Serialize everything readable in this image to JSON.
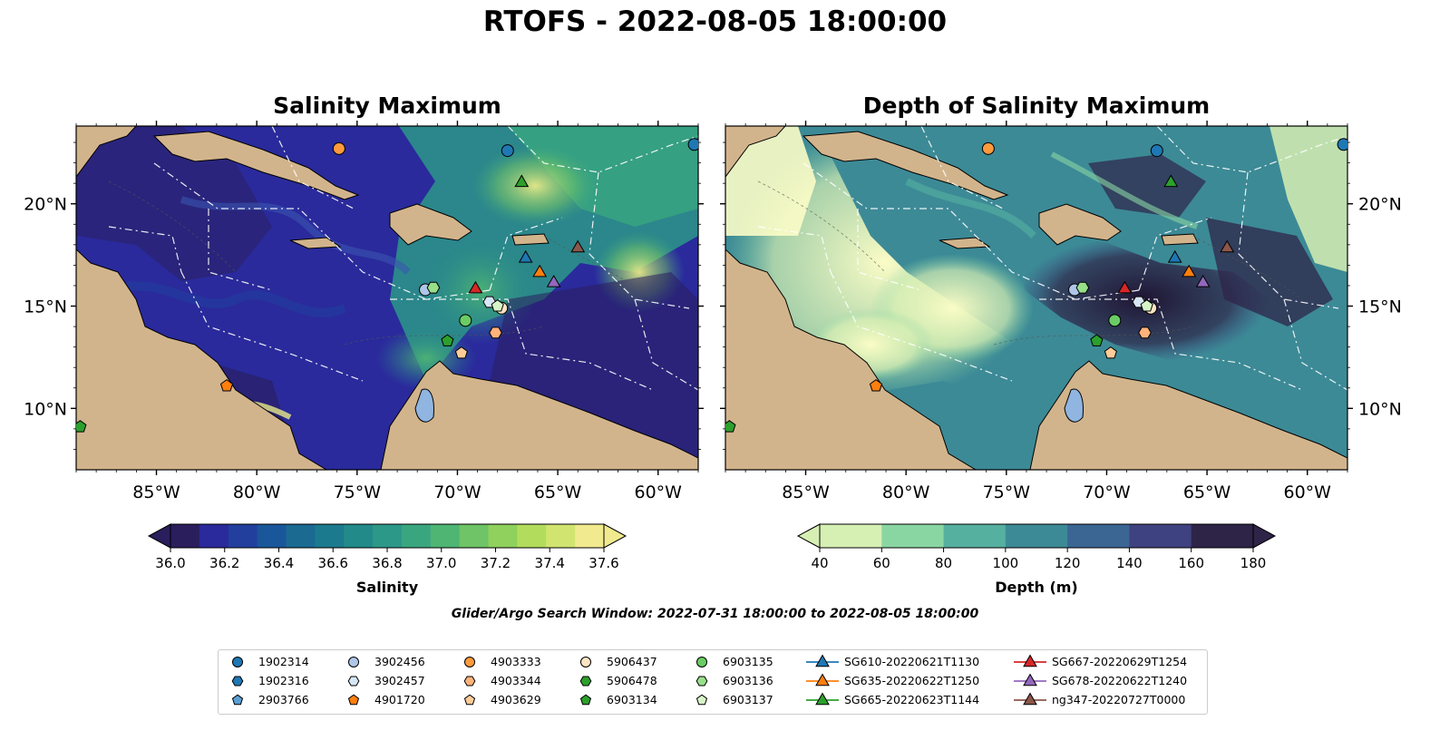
{
  "figure": {
    "title": "RTOFS - 2022-08-05 18:00:00",
    "search_window": "Glider/Argo Search Window: 2022-07-31 18:00:00 to 2022-08-05 18:00:00"
  },
  "chart_data": [
    {
      "type": "heatmap",
      "title": "Salinity Maximum",
      "x_ticks": [
        "85°W",
        "80°W",
        "75°W",
        "70°W",
        "65°W",
        "60°W"
      ],
      "x_tick_values": [
        -85,
        -80,
        -75,
        -70,
        -65,
        -60
      ],
      "y_ticks": [
        "20°N",
        "15°N",
        "10°N"
      ],
      "y_tick_values": [
        20,
        15,
        10
      ],
      "xlim": [
        -89,
        -58
      ],
      "ylim": [
        7,
        23.8
      ],
      "colorbar": {
        "label": "Salinity",
        "ticks": [
          "36.0",
          "36.2",
          "36.4",
          "36.6",
          "36.8",
          "37.0",
          "37.2",
          "37.4",
          "37.6"
        ],
        "range": [
          36.0,
          37.6
        ],
        "extend": "both",
        "colors": [
          "#2a1e5c",
          "#2a2a9c",
          "#223f9e",
          "#1a579a",
          "#1a6a92",
          "#1c7a8e",
          "#238a8a",
          "#2c9888",
          "#3aa680",
          "#4fb573",
          "#6ec466",
          "#8fd15c",
          "#b2dd5c",
          "#d2e470",
          "#f1ea8e"
        ]
      }
    },
    {
      "type": "heatmap",
      "title": "Depth of Salinity Maximum",
      "x_ticks": [
        "85°W",
        "80°W",
        "75°W",
        "70°W",
        "65°W",
        "60°W"
      ],
      "x_tick_values": [
        -85,
        -80,
        -75,
        -70,
        -65,
        -60
      ],
      "y_ticks": [
        "20°N",
        "15°N",
        "10°N"
      ],
      "y_tick_values": [
        20,
        15,
        10
      ],
      "xlim": [
        -89,
        -58
      ],
      "ylim": [
        7,
        23.8
      ],
      "colorbar": {
        "label": "Depth (m)",
        "ticks": [
          "40",
          "60",
          "80",
          "100",
          "120",
          "140",
          "160",
          "180"
        ],
        "range": [
          40,
          180
        ],
        "extend": "both",
        "colors": [
          "#d6efb3",
          "#8ad6a3",
          "#55b0a0",
          "#3c8a96",
          "#3b6693",
          "#3f4280",
          "#2e2448"
        ]
      }
    }
  ],
  "legend": {
    "items": [
      {
        "label": "1902314",
        "shape": "circle",
        "color": "#1f77b4"
      },
      {
        "label": "1902316",
        "shape": "hexagon",
        "color": "#1f77b4"
      },
      {
        "label": "2903766",
        "shape": "pentagon",
        "color": "#5a9fd4"
      },
      {
        "label": "3902456",
        "shape": "circle",
        "color": "#aec7e8"
      },
      {
        "label": "3902457",
        "shape": "hexagon",
        "color": "#d6e6f5"
      },
      {
        "label": "4901720",
        "shape": "pentagon",
        "color": "#ff7f0e"
      },
      {
        "label": "4903333",
        "shape": "circle",
        "color": "#ff9a3c"
      },
      {
        "label": "4903344",
        "shape": "hexagon",
        "color": "#ffb27a"
      },
      {
        "label": "4903629",
        "shape": "pentagon",
        "color": "#ffcc99"
      },
      {
        "label": "5906437",
        "shape": "circle",
        "color": "#ffe4c4"
      },
      {
        "label": "5906478",
        "shape": "hexagon",
        "color": "#2ca02c"
      },
      {
        "label": "6903134",
        "shape": "pentagon",
        "color": "#2ca02c"
      },
      {
        "label": "6903135",
        "shape": "circle",
        "color": "#6acc64"
      },
      {
        "label": "6903136",
        "shape": "hexagon",
        "color": "#98df8a"
      },
      {
        "label": "6903137",
        "shape": "pentagon",
        "color": "#d8f5c8"
      },
      {
        "label": "SG610-20220621T1130",
        "shape": "triangle",
        "color": "#1f77b4"
      },
      {
        "label": "SG635-20220622T1250",
        "shape": "triangle",
        "color": "#ff7f0e"
      },
      {
        "label": "SG665-20220623T1144",
        "shape": "triangle",
        "color": "#2ca02c"
      },
      {
        "label": "SG667-20220629T1254",
        "shape": "triangle",
        "color": "#d62728"
      },
      {
        "label": "SG678-20220622T1240",
        "shape": "triangle",
        "color": "#9467bd"
      },
      {
        "label": "ng347-20220727T0000",
        "shape": "triangle",
        "color": "#8c564b"
      }
    ]
  },
  "markers": [
    {
      "name": "4903333",
      "lon": -75.9,
      "lat": 22.7
    },
    {
      "name": "1902314",
      "lon": -67.5,
      "lat": 22.6
    },
    {
      "name": "1902314",
      "lon": -58.2,
      "lat": 22.9
    },
    {
      "name": "SG665-20220623T1144",
      "lon": -66.8,
      "lat": 21.1
    },
    {
      "name": "ng347-20220727T0000",
      "lon": -64.0,
      "lat": 17.9
    },
    {
      "name": "SG610-20220621T1130",
      "lon": -66.6,
      "lat": 17.4
    },
    {
      "name": "SG635-20220622T1250",
      "lon": -65.9,
      "lat": 16.7
    },
    {
      "name": "SG678-20220622T1240",
      "lon": -65.2,
      "lat": 16.2
    },
    {
      "name": "SG667-20220629T1254",
      "lon": -69.1,
      "lat": 15.9
    },
    {
      "name": "3902456",
      "lon": -71.6,
      "lat": 15.8
    },
    {
      "name": "6903136",
      "lon": -71.2,
      "lat": 15.9
    },
    {
      "name": "3902457",
      "lon": -68.4,
      "lat": 15.2
    },
    {
      "name": "5906437",
      "lon": -67.8,
      "lat": 14.9
    },
    {
      "name": "6903137",
      "lon": -68.0,
      "lat": 15.0
    },
    {
      "name": "6903135",
      "lon": -69.6,
      "lat": 14.3
    },
    {
      "name": "4903344",
      "lon": -68.1,
      "lat": 13.7
    },
    {
      "name": "6903134",
      "lon": -70.5,
      "lat": 13.3
    },
    {
      "name": "4903629",
      "lon": -69.8,
      "lat": 12.7
    },
    {
      "name": "4901720",
      "lon": -81.5,
      "lat": 11.1
    },
    {
      "name": "6903134",
      "lon": -88.8,
      "lat": 9.1
    }
  ]
}
